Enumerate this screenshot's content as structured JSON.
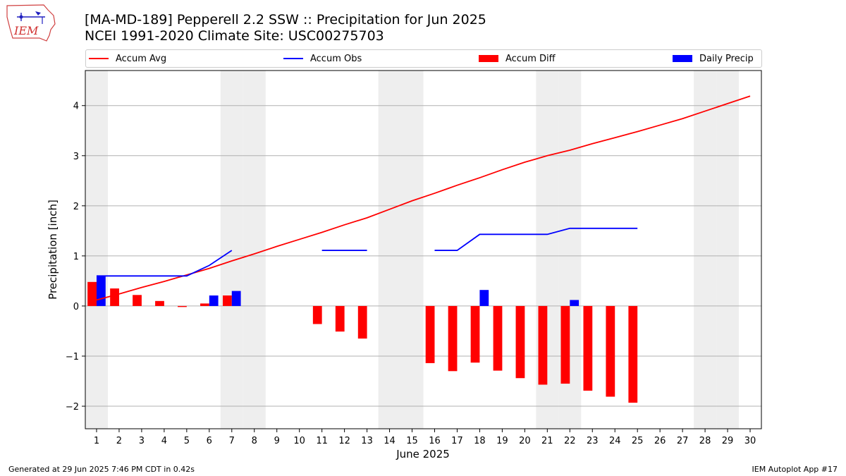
{
  "title_line1": "[MA-MD-189] Pepperell 2.2 SSW :: Precipitation for Jun 2025",
  "title_line2": "NCEI 1991-2020 Climate Site: USC00275703",
  "footer_left": "Generated at 29 Jun 2025 7:46 PM CDT in 0.42s",
  "footer_right": "IEM Autoplot App #17",
  "logo_text": "IEM",
  "colors": {
    "avg": "#ff0000",
    "obs": "#0000ff",
    "diff": "#ff0000",
    "daily": "#0000ff",
    "weekend": "#eeeeee",
    "grid": "#b0b0b0"
  },
  "chart_data": {
    "type": "bar",
    "xlabel": "June 2025",
    "ylabel": "Precipitation [inch]",
    "ylim": [
      -2.45,
      4.7
    ],
    "yticks": [
      -2,
      -1,
      0,
      1,
      2,
      3,
      4
    ],
    "xlim": [
      0.5,
      30.5
    ],
    "days": [
      1,
      2,
      3,
      4,
      5,
      6,
      7,
      8,
      9,
      10,
      11,
      12,
      13,
      14,
      15,
      16,
      17,
      18,
      19,
      20,
      21,
      22,
      23,
      24,
      25,
      26,
      27,
      28,
      29,
      30
    ],
    "weekend_days": [
      1,
      7,
      8,
      14,
      15,
      21,
      22,
      28,
      29
    ],
    "legend": [
      "Accum Avg",
      "Accum Obs",
      "Accum Diff",
      "Daily Precip"
    ],
    "legend_position": "top",
    "grid": "horizontal",
    "series": [
      {
        "name": "Accum Avg",
        "kind": "line",
        "values": [
          0.12,
          0.24,
          0.37,
          0.49,
          0.62,
          0.75,
          0.9,
          1.04,
          1.19,
          1.33,
          1.47,
          1.62,
          1.76,
          1.93,
          2.1,
          2.25,
          2.41,
          2.56,
          2.72,
          2.87,
          3.0,
          3.11,
          3.24,
          3.36,
          3.48,
          3.61,
          3.74,
          3.89,
          4.04,
          4.19
        ]
      },
      {
        "name": "Accum Obs",
        "kind": "line",
        "values": [
          0.6,
          0.6,
          0.6,
          0.6,
          0.6,
          0.81,
          1.11,
          null,
          null,
          null,
          1.11,
          1.11,
          1.11,
          null,
          null,
          1.11,
          1.11,
          1.43,
          1.43,
          1.43,
          1.43,
          1.55,
          1.55,
          1.55,
          1.55,
          null,
          null,
          null,
          null,
          null
        ]
      },
      {
        "name": "Accum Diff",
        "kind": "bar",
        "values": [
          0.48,
          0.35,
          0.22,
          0.1,
          -0.02,
          0.05,
          0.21,
          null,
          null,
          null,
          -0.36,
          -0.51,
          -0.65,
          null,
          null,
          -1.14,
          -1.3,
          -1.13,
          -1.29,
          -1.44,
          -1.57,
          -1.55,
          -1.69,
          -1.81,
          -1.93,
          null,
          null,
          null,
          null,
          null
        ]
      },
      {
        "name": "Daily Precip",
        "kind": "bar",
        "values": [
          0.6,
          0,
          0,
          0,
          0,
          0.21,
          0.3,
          null,
          null,
          null,
          0,
          0,
          0,
          null,
          null,
          0,
          0,
          0.32,
          0,
          0,
          0,
          0.12,
          0,
          0,
          0,
          null,
          null,
          null,
          null,
          null
        ]
      }
    ]
  }
}
